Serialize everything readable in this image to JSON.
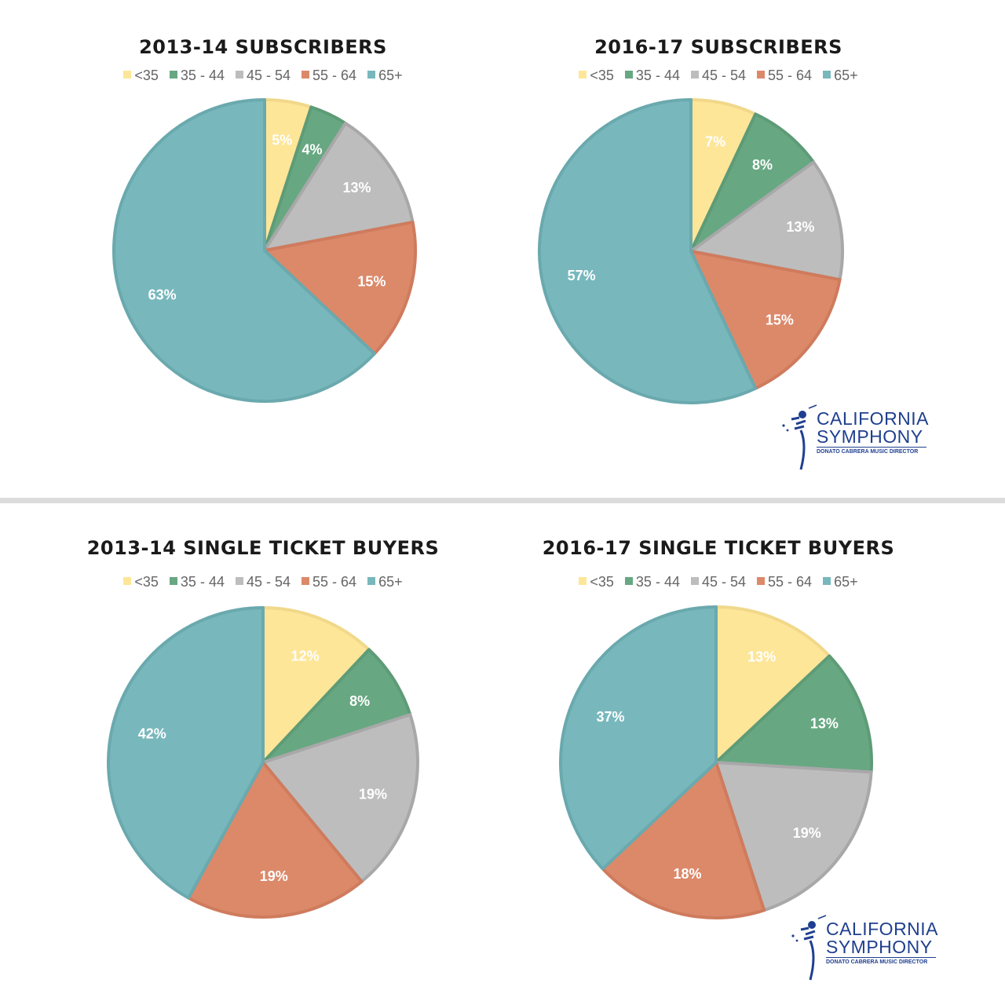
{
  "colors": {
    "<35": "#fee699",
    "35 - 44": "#67a882",
    "45 - 54": "#bdbdbd",
    "55 - 64": "#dc896a",
    "65+": "#78b8bd"
  },
  "stroke_colors": {
    "<35": "#f1d88a",
    "35 - 44": "#5e9b77",
    "45 - 54": "#a8a8a8",
    "55 - 64": "#cf7b5d",
    "65+": "#6aa9ae"
  },
  "chart_data": [
    {
      "type": "pie",
      "title": "2013-14 SUBSCRIBERS",
      "categories": [
        "<35",
        "35 - 44",
        "45 - 54",
        "55 - 64",
        "65+"
      ],
      "values": [
        5,
        4,
        13,
        15,
        63
      ],
      "labels": [
        "5%",
        "4%",
        "13%",
        "15%",
        "63%"
      ],
      "legend": "top"
    },
    {
      "type": "pie",
      "title": "2016-17 SUBSCRIBERS",
      "categories": [
        "<35",
        "35 - 44",
        "45 - 54",
        "55 - 64",
        "65+"
      ],
      "values": [
        7,
        8,
        13,
        15,
        57
      ],
      "labels": [
        "7%",
        "8%",
        "13%",
        "15%",
        "57%"
      ],
      "legend": "top"
    },
    {
      "type": "pie",
      "title": "2013-14 SINGLE TICKET BUYERS",
      "categories": [
        "<35",
        "35 - 44",
        "45 - 54",
        "55 - 64",
        "65+"
      ],
      "values": [
        12,
        8,
        19,
        19,
        42
      ],
      "labels": [
        "12%",
        "8%",
        "19%",
        "19%",
        "42%"
      ],
      "legend": "top"
    },
    {
      "type": "pie",
      "title": "2016-17 SINGLE TICKET BUYERS",
      "categories": [
        "<35",
        "35 - 44",
        "45 - 54",
        "55 - 64",
        "65+"
      ],
      "values": [
        13,
        13,
        19,
        18,
        37
      ],
      "labels": [
        "13%",
        "13%",
        "19%",
        "18%",
        "37%"
      ],
      "legend": "top"
    }
  ],
  "logo": {
    "line1": "CALIFORNIA",
    "line2": "SYMPHONY",
    "line3": "DONATO CABRERA MUSIC DIRECTOR"
  }
}
